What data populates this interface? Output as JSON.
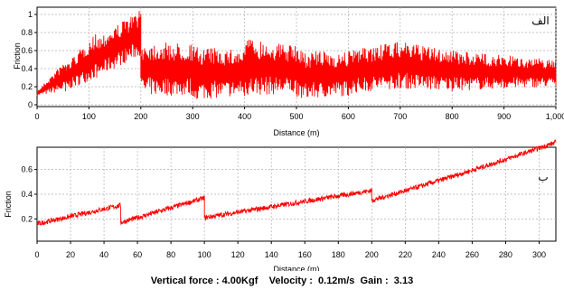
{
  "chart_data": [
    {
      "type": "line",
      "panel_tag": "الف",
      "xlabel": "Distance (m)",
      "ylabel": "Friction",
      "xlim": [
        0,
        1000
      ],
      "ylim": [
        -0.02,
        1.08
      ],
      "x_ticks": [
        0,
        100,
        200,
        300,
        400,
        500,
        600,
        700,
        800,
        900,
        1000
      ],
      "x_tick_labels": [
        "0",
        "100",
        "200",
        "300",
        "400",
        "500",
        "600",
        "700",
        "800",
        "900",
        "1,000"
      ],
      "y_ticks": [
        0,
        0.2,
        0.4,
        0.6,
        0.8,
        1
      ],
      "y_tick_labels": [
        "0",
        "0.2",
        "0.4",
        "0.6",
        "0.8",
        "1"
      ],
      "grid": true,
      "color": "#ff0000",
      "segments": [
        {
          "x": [
            0,
            55
          ],
          "upper": [
            0.15,
            0.5
          ],
          "lower": [
            0.1,
            0.15
          ]
        },
        {
          "x": [
            55,
            115
          ],
          "upper": [
            0.45,
            0.8
          ],
          "lower": [
            0.15,
            0.3
          ]
        },
        {
          "x": [
            115,
            200
          ],
          "upper": [
            0.75,
            1.05
          ],
          "lower": [
            0.3,
            0.55
          ]
        },
        {
          "x": [
            200,
            300
          ],
          "upper": [
            0.7,
            0.68
          ],
          "lower": [
            0.1,
            0.1
          ]
        },
        {
          "x": [
            300,
            400
          ],
          "upper": [
            0.65,
            0.6
          ],
          "lower": [
            0.05,
            0.1
          ]
        },
        {
          "x": [
            400,
            500
          ],
          "upper": [
            0.75,
            0.65
          ],
          "lower": [
            0.1,
            0.12
          ]
        },
        {
          "x": [
            500,
            600
          ],
          "upper": [
            0.6,
            0.58
          ],
          "lower": [
            0.05,
            0.1
          ]
        },
        {
          "x": [
            600,
            700
          ],
          "upper": [
            0.6,
            0.7
          ],
          "lower": [
            0.12,
            0.18
          ]
        },
        {
          "x": [
            700,
            800
          ],
          "upper": [
            0.7,
            0.6
          ],
          "lower": [
            0.18,
            0.15
          ]
        },
        {
          "x": [
            800,
            900
          ],
          "upper": [
            0.6,
            0.55
          ],
          "lower": [
            0.15,
            0.18
          ]
        },
        {
          "x": [
            900,
            1000
          ],
          "upper": [
            0.55,
            0.5
          ],
          "lower": [
            0.18,
            0.2
          ]
        }
      ]
    },
    {
      "type": "line",
      "panel_tag": "ب",
      "xlabel": "Distance (m)",
      "ylabel": "Friction",
      "xlim": [
        0,
        310
      ],
      "ylim": [
        0.02,
        0.78
      ],
      "x_ticks": [
        0,
        20,
        40,
        60,
        80,
        100,
        120,
        140,
        160,
        180,
        200,
        220,
        240,
        260,
        280,
        300
      ],
      "x_tick_labels": [
        "0",
        "20",
        "40",
        "60",
        "80",
        "100",
        "120",
        "140",
        "160",
        "180",
        "200",
        "220",
        "240",
        "260",
        "280",
        "300"
      ],
      "y_ticks": [
        0.2,
        0.4,
        0.6
      ],
      "y_tick_labels": [
        "0.2",
        "0.4",
        "0.6"
      ],
      "grid": true,
      "color": "#ff0000",
      "segments": [
        {
          "x": [
            0,
            50
          ],
          "mean": [
            0.16,
            0.31
          ]
        },
        {
          "x": [
            50,
            100
          ],
          "mean": [
            0.17,
            0.37
          ]
        },
        {
          "x": [
            100,
            200
          ],
          "mean": [
            0.21,
            0.43
          ]
        },
        {
          "x": [
            200,
            310
          ],
          "mean": [
            0.35,
            0.77
          ]
        }
      ]
    }
  ],
  "footer": {
    "vertical_force": "Vertical force : 4.00Kgf",
    "velocity": "Velocity :  0.12m/s",
    "gain": "Gain :  3.13"
  }
}
